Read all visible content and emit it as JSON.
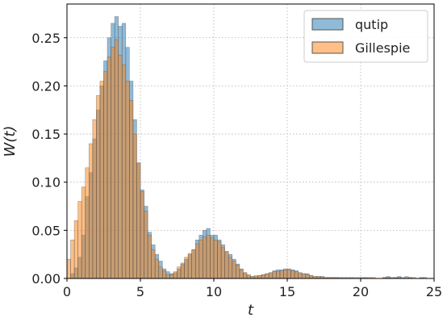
{
  "chart_data": {
    "type": "histogram",
    "xlabel": "t",
    "ylabel": "W(t)",
    "xlim": [
      0,
      25
    ],
    "ylim": [
      0,
      0.285
    ],
    "xticks": [
      0,
      5,
      10,
      15,
      20,
      25
    ],
    "yticks": [
      0.0,
      0.05,
      0.1,
      0.15,
      0.2,
      0.25
    ],
    "xtick_labels": [
      "0",
      "5",
      "10",
      "15",
      "20",
      "25"
    ],
    "ytick_labels": [
      "0.00",
      "0.05",
      "0.10",
      "0.15",
      "0.20",
      "0.25"
    ],
    "grid": true,
    "legend_position": "top-right",
    "bin_width": 0.25,
    "bin_start": 0,
    "series": [
      {
        "name": "qutip",
        "color": "#1f77b4",
        "values": [
          0.0,
          0.005,
          0.011,
          0.022,
          0.045,
          0.085,
          0.11,
          0.145,
          0.175,
          0.2,
          0.226,
          0.25,
          0.265,
          0.272,
          0.262,
          0.265,
          0.24,
          0.205,
          0.165,
          0.12,
          0.092,
          0.075,
          0.048,
          0.035,
          0.025,
          0.018,
          0.01,
          0.007,
          0.005,
          0.006,
          0.01,
          0.015,
          0.02,
          0.025,
          0.03,
          0.04,
          0.045,
          0.05,
          0.052,
          0.045,
          0.045,
          0.04,
          0.035,
          0.028,
          0.025,
          0.02,
          0.015,
          0.01,
          0.006,
          0.003,
          0.002,
          0.002,
          0.003,
          0.004,
          0.005,
          0.006,
          0.008,
          0.009,
          0.009,
          0.01,
          0.01,
          0.009,
          0.008,
          0.006,
          0.005,
          0.005,
          0.003,
          0.002,
          0.002,
          0.002,
          0.001,
          0.001,
          0.001,
          0.001,
          0.001,
          0.001,
          0.001,
          0.001,
          0.0,
          0.0,
          0.001,
          0.001,
          0.0,
          0.0,
          0.0,
          0.0,
          0.001,
          0.002,
          0.001,
          0.001,
          0.002,
          0.001,
          0.002,
          0.001,
          0.0,
          0.0,
          0.001,
          0.001,
          0.0,
          0.0
        ]
      },
      {
        "name": "Gillespie",
        "color": "#ff7f0e",
        "values": [
          0.02,
          0.04,
          0.06,
          0.08,
          0.095,
          0.115,
          0.14,
          0.165,
          0.19,
          0.205,
          0.215,
          0.23,
          0.24,
          0.248,
          0.232,
          0.222,
          0.205,
          0.185,
          0.15,
          0.12,
          0.09,
          0.07,
          0.045,
          0.03,
          0.02,
          0.012,
          0.008,
          0.004,
          0.004,
          0.007,
          0.012,
          0.016,
          0.022,
          0.026,
          0.03,
          0.036,
          0.04,
          0.043,
          0.045,
          0.042,
          0.04,
          0.038,
          0.032,
          0.028,
          0.022,
          0.018,
          0.014,
          0.009,
          0.006,
          0.004,
          0.002,
          0.003,
          0.003,
          0.004,
          0.005,
          0.006,
          0.007,
          0.007,
          0.008,
          0.009,
          0.009,
          0.008,
          0.007,
          0.006,
          0.005,
          0.004,
          0.003,
          0.002,
          0.002,
          0.002,
          0.001,
          0.001,
          0.001,
          0.001,
          0.0,
          0.0,
          0.0,
          0.0,
          0.001,
          0.001,
          0.0,
          0.0,
          0.001,
          0.001,
          0.0,
          0.0,
          0.001,
          0.001,
          0.0,
          0.001,
          0.001,
          0.0,
          0.0,
          0.001,
          0.001,
          0.0,
          0.0,
          0.0,
          0.0,
          0.0
        ]
      }
    ]
  }
}
